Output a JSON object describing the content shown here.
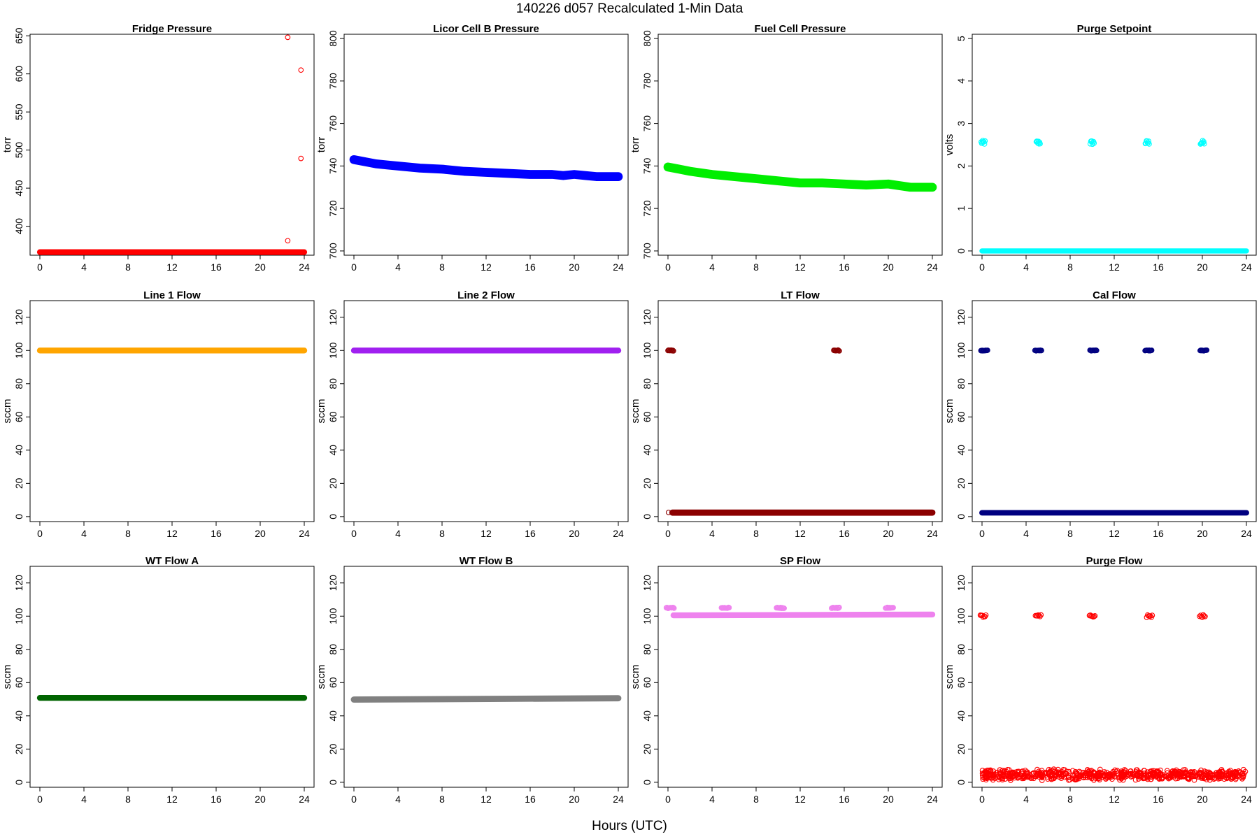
{
  "page": {
    "title": "140226   d057   Recalculated 1-Min Data",
    "x_axis_label": "Hours (UTC)"
  },
  "chart_data": [
    {
      "type": "scatter",
      "title": "Fridge Pressure",
      "ylabel": "torr",
      "xlabel": "",
      "color": "#ff0000",
      "xlim": [
        0,
        24
      ],
      "ylim": [
        362,
        652
      ],
      "xticks": [
        0,
        4,
        8,
        12,
        16,
        20,
        24
      ],
      "yticks": [
        400,
        450,
        500,
        550,
        600,
        650
      ],
      "series": [
        {
          "kind": "band",
          "x0": 0,
          "x1": 24,
          "y_start": 366,
          "y_end": 366,
          "spread": 1,
          "solid": true
        },
        {
          "kind": "points",
          "x": [
            22.5,
            22.5,
            23.7,
            23.7
          ],
          "y": [
            648,
            381,
            605,
            489
          ]
        }
      ]
    },
    {
      "type": "scatter",
      "title": "Licor Cell B Pressure",
      "ylabel": "torr",
      "xlabel": "",
      "color": "#0000ff",
      "xlim": [
        0,
        24
      ],
      "ylim": [
        698,
        802
      ],
      "xticks": [
        0,
        4,
        8,
        12,
        16,
        20,
        24
      ],
      "yticks": [
        700,
        720,
        740,
        760,
        780,
        800
      ],
      "series": [
        {
          "kind": "curve",
          "x": [
            0,
            1,
            2,
            3,
            4,
            6,
            8,
            10,
            12,
            14,
            16,
            18,
            19,
            20,
            21,
            22,
            24
          ],
          "y": [
            743,
            742,
            741,
            740.5,
            740,
            739,
            738.5,
            737.5,
            737,
            736.5,
            736,
            736,
            735.5,
            736,
            735.5,
            735,
            735
          ],
          "spread": 1.1
        }
      ]
    },
    {
      "type": "scatter",
      "title": "Fuel Cell Pressure",
      "ylabel": "torr",
      "xlabel": "",
      "color": "#00ee00",
      "xlim": [
        0,
        24
      ],
      "ylim": [
        698,
        802
      ],
      "xticks": [
        0,
        4,
        8,
        12,
        16,
        20,
        24
      ],
      "yticks": [
        700,
        720,
        740,
        760,
        780,
        800
      ],
      "series": [
        {
          "kind": "curve",
          "x": [
            0,
            1,
            2,
            4,
            6,
            8,
            10,
            12,
            14,
            16,
            18,
            20,
            22,
            24
          ],
          "y": [
            739.5,
            738.5,
            737.5,
            736,
            735,
            734,
            733,
            732,
            732,
            731.5,
            731,
            731.5,
            730,
            730
          ],
          "spread": 1.1
        }
      ]
    },
    {
      "type": "scatter",
      "title": "Purge Setpoint",
      "ylabel": "volts",
      "xlabel": "",
      "color": "#00ffff",
      "xlim": [
        0,
        24
      ],
      "ylim": [
        -0.1,
        5.1
      ],
      "xticks": [
        0,
        4,
        8,
        12,
        16,
        20,
        24
      ],
      "yticks": [
        0,
        1,
        2,
        3,
        4,
        5
      ],
      "series": [
        {
          "kind": "band",
          "x0": 0,
          "x1": 24,
          "y_start": 0,
          "y_end": 0,
          "spread": 0.012,
          "solid": true
        },
        {
          "kind": "clusters",
          "centers": [
            0.1,
            5.1,
            10,
            15,
            20
          ],
          "width": 0.35,
          "y": 2.55,
          "spread": 0.05,
          "n": 8
        }
      ]
    },
    {
      "type": "scatter",
      "title": "Line 1 Flow",
      "ylabel": "sccm",
      "xlabel": "",
      "color": "#ffa500",
      "xlim": [
        0,
        24
      ],
      "ylim": [
        -3,
        130
      ],
      "xticks": [
        0,
        4,
        8,
        12,
        16,
        20,
        24
      ],
      "yticks": [
        0,
        20,
        40,
        60,
        80,
        100,
        120
      ],
      "series": [
        {
          "kind": "band",
          "x0": 0,
          "x1": 24,
          "y_start": 100,
          "y_end": 100,
          "spread": 0.5,
          "solid": true
        }
      ]
    },
    {
      "type": "scatter",
      "title": "Line 2 Flow",
      "ylabel": "sccm",
      "xlabel": "",
      "color": "#a020f0",
      "xlim": [
        0,
        24
      ],
      "ylim": [
        -3,
        130
      ],
      "xticks": [
        0,
        4,
        8,
        12,
        16,
        20,
        24
      ],
      "yticks": [
        0,
        20,
        40,
        60,
        80,
        100,
        120
      ],
      "series": [
        {
          "kind": "band",
          "x0": 0,
          "x1": 24,
          "y_start": 100,
          "y_end": 100,
          "spread": 0.5,
          "solid": true
        }
      ]
    },
    {
      "type": "scatter",
      "title": "LT Flow",
      "ylabel": "sccm",
      "xlabel": "",
      "color": "#8b0000",
      "xlim": [
        0,
        24
      ],
      "ylim": [
        -3,
        130
      ],
      "xticks": [
        0,
        4,
        8,
        12,
        16,
        20,
        24
      ],
      "yticks": [
        0,
        20,
        40,
        60,
        80,
        100,
        120
      ],
      "series": [
        {
          "kind": "band",
          "x0": 0.4,
          "x1": 24,
          "y_start": 2.4,
          "y_end": 2.4,
          "spread": 0.6,
          "solid": true
        },
        {
          "kind": "clusters",
          "centers": [
            0.25,
            15.3
          ],
          "width": 0.5,
          "y": 100,
          "spread": 0.3,
          "n": 10
        },
        {
          "kind": "points",
          "x": [
            0.05
          ],
          "y": [
            2.5
          ]
        }
      ]
    },
    {
      "type": "scatter",
      "title": "Cal Flow",
      "ylabel": "sccm",
      "xlabel": "",
      "color": "#000080",
      "xlim": [
        0,
        24
      ],
      "ylim": [
        -3,
        130
      ],
      "xticks": [
        0,
        4,
        8,
        12,
        16,
        20,
        24
      ],
      "yticks": [
        0,
        20,
        40,
        60,
        80,
        100,
        120
      ],
      "series": [
        {
          "kind": "band",
          "x0": 0,
          "x1": 24,
          "y_start": 2.3,
          "y_end": 2.3,
          "spread": 0.4,
          "solid": true
        },
        {
          "kind": "clusters",
          "centers": [
            0.2,
            5.1,
            10.1,
            15.1,
            20.1
          ],
          "width": 0.6,
          "y": 100,
          "spread": 0.2,
          "n": 12
        }
      ]
    },
    {
      "type": "scatter",
      "title": "WT Flow A",
      "ylabel": "sccm",
      "xlabel": "",
      "color": "#006400",
      "xlim": [
        0,
        24
      ],
      "ylim": [
        -3,
        130
      ],
      "xticks": [
        0,
        4,
        8,
        12,
        16,
        20,
        24
      ],
      "yticks": [
        0,
        20,
        40,
        60,
        80,
        100,
        120
      ],
      "series": [
        {
          "kind": "band",
          "x0": 0,
          "x1": 24,
          "y_start": 50.8,
          "y_end": 50.8,
          "spread": 0.5,
          "solid": true
        }
      ]
    },
    {
      "type": "scatter",
      "title": "WT Flow B",
      "ylabel": "sccm",
      "xlabel": "",
      "color": "#808080",
      "xlim": [
        0,
        24
      ],
      "ylim": [
        -3,
        130
      ],
      "xticks": [
        0,
        4,
        8,
        12,
        16,
        20,
        24
      ],
      "yticks": [
        0,
        20,
        40,
        60,
        80,
        100,
        120
      ],
      "series": [
        {
          "kind": "band",
          "x0": 0,
          "x1": 24,
          "y_start": 49.8,
          "y_end": 50.6,
          "spread": 0.6,
          "solid": true
        }
      ]
    },
    {
      "type": "scatter",
      "title": "SP Flow",
      "ylabel": "sccm",
      "xlabel": "",
      "color": "#ee82ee",
      "xlim": [
        0,
        24
      ],
      "ylim": [
        -3,
        130
      ],
      "xticks": [
        0,
        4,
        8,
        12,
        16,
        20,
        24
      ],
      "yticks": [
        0,
        20,
        40,
        60,
        80,
        100,
        120
      ],
      "series": [
        {
          "kind": "band",
          "x0": 0.5,
          "x1": 24,
          "y_start": 100.5,
          "y_end": 101,
          "spread": 0.5,
          "solid": true
        },
        {
          "kind": "clusters",
          "centers": [
            0.2,
            5.2,
            10.2,
            15.2,
            20.1
          ],
          "width": 0.7,
          "y": 105,
          "spread": 0.3,
          "n": 14
        }
      ]
    },
    {
      "type": "scatter",
      "title": "Purge Flow",
      "ylabel": "sccm",
      "xlabel": "",
      "color": "#ff0000",
      "xlim": [
        0,
        24
      ],
      "ylim": [
        -3,
        130
      ],
      "xticks": [
        0,
        4,
        8,
        12,
        16,
        20,
        24
      ],
      "yticks": [
        0,
        20,
        40,
        60,
        80,
        100,
        120
      ],
      "series": [
        {
          "kind": "band",
          "x0": 0,
          "x1": 24,
          "y_start": 4.5,
          "y_end": 4.5,
          "spread": 3.5,
          "solid": false
        },
        {
          "kind": "clusters",
          "centers": [
            0.1,
            5.1,
            10,
            15.2,
            20
          ],
          "width": 0.5,
          "y": 100,
          "spread": 0.8,
          "n": 7
        }
      ]
    }
  ]
}
